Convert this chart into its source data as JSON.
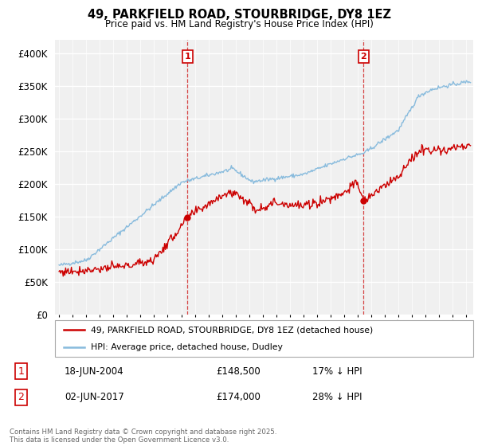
{
  "title": "49, PARKFIELD ROAD, STOURBRIDGE, DY8 1EZ",
  "subtitle": "Price paid vs. HM Land Registry's House Price Index (HPI)",
  "ylim": [
    0,
    420000
  ],
  "xlim_start": 1994.7,
  "xlim_end": 2025.5,
  "hpi_color": "#88BBDD",
  "price_color": "#CC0000",
  "marker1_x": 2004.46,
  "marker1_y": 148500,
  "marker2_x": 2017.42,
  "marker2_y": 174000,
  "legend_entry1": "49, PARKFIELD ROAD, STOURBRIDGE, DY8 1EZ (detached house)",
  "legend_entry2": "HPI: Average price, detached house, Dudley",
  "table_row1": [
    "1",
    "18-JUN-2004",
    "£148,500",
    "17% ↓ HPI"
  ],
  "table_row2": [
    "2",
    "02-JUN-2017",
    "£174,000",
    "28% ↓ HPI"
  ],
  "footer": "Contains HM Land Registry data © Crown copyright and database right 2025.\nThis data is licensed under the Open Government Licence v3.0.",
  "bg_color": "#ffffff",
  "plot_bg_color": "#f0f0f0"
}
